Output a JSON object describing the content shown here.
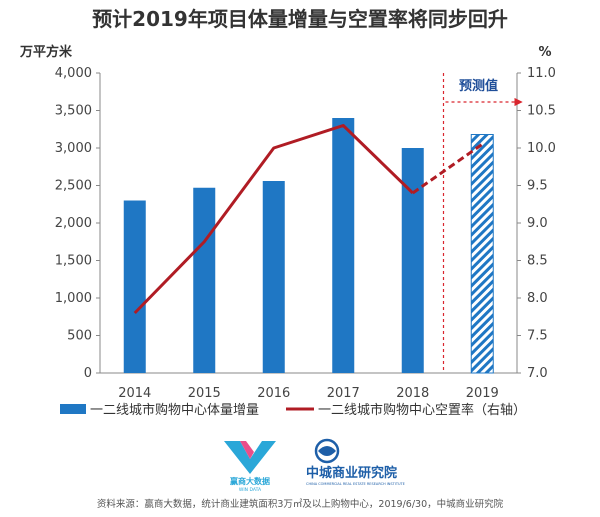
{
  "chart_data": {
    "type": "bar",
    "title": "预计2019年项目体量增量与空置率将同步回升",
    "y_left_unit": "万平方米",
    "y_right_unit": "%",
    "categories": [
      "2014",
      "2015",
      "2016",
      "2017",
      "2018",
      "2019"
    ],
    "ylim_left": [
      0,
      4000
    ],
    "ylim_right": [
      7.0,
      11.0
    ],
    "yticks_left": [
      "0",
      "500",
      "1,000",
      "1,500",
      "2,000",
      "2,500",
      "3,000",
      "3,500",
      "4,000"
    ],
    "yticks_right": [
      "7.0",
      "7.5",
      "8.0",
      "8.5",
      "9.0",
      "9.5",
      "10.0",
      "10.5",
      "11.0"
    ],
    "series": [
      {
        "name": "一二线城市购物中心体量增量",
        "type": "bar",
        "axis": "left",
        "color": "#1f77c4",
        "values": [
          2300,
          2470,
          2560,
          3400,
          3000,
          3180
        ],
        "forecast_from_index": 5
      },
      {
        "name": "一二线城市购物中心空置率（右轴）",
        "type": "line",
        "axis": "right",
        "color": "#b01c24",
        "values": [
          7.8,
          8.75,
          10.0,
          10.3,
          9.4,
          10.05
        ],
        "forecast_from_index": 4
      }
    ],
    "annotation": "预测值",
    "grid": false,
    "legend": "bottom"
  },
  "logos": {
    "wind_name": "赢商大数据",
    "wind_sub": "WIN DATA",
    "zc_name": "中城商业研究院",
    "zc_sub": "CHINA COMMERCIAL REAL ESTATE RESEARCH INSTITUTE"
  },
  "footer": "资料来源：赢商大数据，统计商业建筑面积3万㎡及以上购物中心，2019/6/30，中城商业研究院",
  "colors": {
    "bar": "#1f77c4",
    "line": "#b01c24",
    "forecast_text": "#1f4e99"
  }
}
